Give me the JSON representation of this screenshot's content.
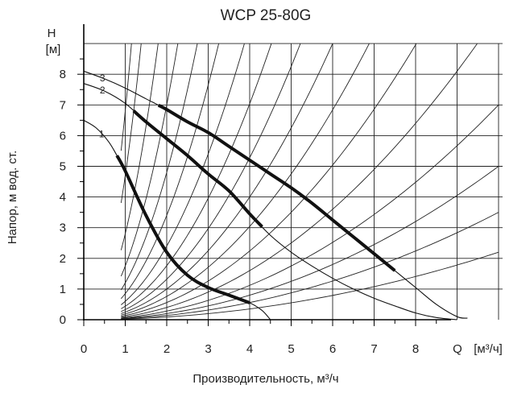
{
  "chart_data": {
    "type": "line",
    "title": "WCP 25-80G",
    "xlabel": "Производительность, м³/ч",
    "ylabel": "Напор, м вод. ст.",
    "x_axis_symbol": "Q",
    "x_axis_unit": "[м³/ч]",
    "y_axis_symbol": "H",
    "y_axis_unit": "[м]",
    "xlim": [
      0,
      9
    ],
    "ylim": [
      0,
      9
    ],
    "x_ticks": [
      0,
      1,
      2,
      3,
      4,
      5,
      6,
      7,
      8
    ],
    "y_ticks": [
      0,
      1,
      2,
      3,
      4,
      5,
      6,
      7,
      8
    ],
    "grid": true,
    "series": [
      {
        "name": "1",
        "points": [
          [
            0,
            6.5
          ],
          [
            0.3,
            6.25
          ],
          [
            0.6,
            5.8
          ],
          [
            0.8,
            5.35
          ],
          [
            1.0,
            4.85
          ],
          [
            1.5,
            3.4
          ],
          [
            2.0,
            2.2
          ],
          [
            2.5,
            1.45
          ],
          [
            3.0,
            1.05
          ],
          [
            3.5,
            0.8
          ],
          [
            4.0,
            0.55
          ],
          [
            4.3,
            0.3
          ],
          [
            4.5,
            0.0
          ]
        ],
        "highlight_range": [
          0.8,
          4.0
        ]
      },
      {
        "name": "2",
        "points": [
          [
            0,
            7.7
          ],
          [
            0.5,
            7.45
          ],
          [
            1.0,
            7.05
          ],
          [
            1.5,
            6.45
          ],
          [
            2.0,
            5.9
          ],
          [
            2.5,
            5.35
          ],
          [
            3.0,
            4.75
          ],
          [
            3.5,
            4.2
          ],
          [
            4.0,
            3.45
          ],
          [
            4.5,
            2.75
          ],
          [
            5.0,
            2.2
          ],
          [
            5.5,
            1.75
          ],
          [
            6.0,
            1.35
          ],
          [
            6.5,
            1.0
          ],
          [
            7.0,
            0.7
          ],
          [
            7.5,
            0.45
          ],
          [
            8.0,
            0.22
          ],
          [
            8.5,
            0.07
          ],
          [
            9.0,
            0.0
          ]
        ],
        "highlight_range": [
          1.2,
          4.3
        ]
      },
      {
        "name": "3",
        "points": [
          [
            0,
            8.1
          ],
          [
            0.5,
            7.85
          ],
          [
            1.0,
            7.55
          ],
          [
            1.5,
            7.2
          ],
          [
            2.0,
            6.85
          ],
          [
            2.5,
            6.45
          ],
          [
            3.0,
            6.1
          ],
          [
            3.5,
            5.65
          ],
          [
            4.0,
            5.2
          ],
          [
            4.5,
            4.75
          ],
          [
            5.0,
            4.3
          ],
          [
            5.5,
            3.8
          ],
          [
            6.0,
            3.25
          ],
          [
            6.5,
            2.7
          ],
          [
            7.0,
            2.15
          ],
          [
            7.5,
            1.6
          ],
          [
            8.0,
            1.05
          ],
          [
            8.5,
            0.5
          ],
          [
            9.0,
            0.1
          ],
          [
            9.25,
            0.05
          ]
        ],
        "highlight_range": [
          1.8,
          7.5
        ]
      }
    ],
    "system_curves": {
      "description": "Parabolic system characteristic lines H = k·Q² (thin)",
      "k_values": [
        6.8,
        4.7,
        2.8,
        1.75,
        1.2,
        0.85,
        0.6,
        0.44,
        0.33,
        0.25,
        0.19,
        0.14,
        0.1,
        0.07,
        0.05,
        0.035,
        0.022
      ]
    }
  }
}
